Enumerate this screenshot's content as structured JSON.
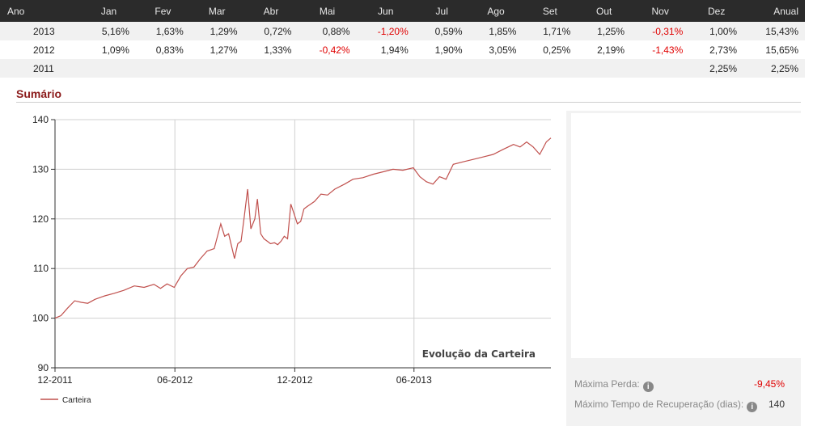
{
  "table": {
    "headers": [
      "Ano",
      "Jan",
      "Fev",
      "Mar",
      "Abr",
      "Mai",
      "Jun",
      "Jul",
      "Ago",
      "Set",
      "Out",
      "Nov",
      "Dez",
      "Anual"
    ],
    "rows": [
      {
        "year": "2013",
        "cells": [
          "5,16%",
          "1,63%",
          "1,29%",
          "0,72%",
          "0,88%",
          "-1,20%",
          "0,59%",
          "1,85%",
          "1,71%",
          "1,25%",
          "-0,31%",
          "1,00%",
          "15,43%"
        ]
      },
      {
        "year": "2012",
        "cells": [
          "1,09%",
          "0,83%",
          "1,27%",
          "1,33%",
          "-0,42%",
          "1,94%",
          "1,90%",
          "3,05%",
          "0,25%",
          "2,19%",
          "-1,43%",
          "2,73%",
          "15,65%"
        ]
      },
      {
        "year": "2011",
        "cells": [
          "",
          "",
          "",
          "",
          "",
          "",
          "",
          "",
          "",
          "",
          "",
          "2,25%",
          "2,25%"
        ]
      }
    ]
  },
  "summary": {
    "title": "Sumário",
    "metrics": [
      {
        "label": "Máxima Perda:",
        "value": "-9,45%",
        "negative": true
      },
      {
        "label": "Máximo Tempo de Recuperação (dias):",
        "value": "140",
        "negative": false
      }
    ]
  },
  "colors": {
    "line": "#c0504d",
    "header_bg": "#2b2b2b",
    "negative": "#e00000",
    "title": "#8b1a1a"
  },
  "chart_data": {
    "type": "line",
    "title": "Evolução da Carteira",
    "xlabel": "",
    "ylabel": "",
    "ylim": [
      90,
      140
    ],
    "yticks": [
      90,
      100,
      110,
      120,
      130,
      140
    ],
    "xticks": [
      "12-2011",
      "06-2012",
      "12-2012",
      "06-2013"
    ],
    "grid": true,
    "legend": "bottom-left",
    "series": [
      {
        "name": "Carteira",
        "x": [
          "2011-12-01",
          "2011-12-10",
          "2011-12-20",
          "2011-12-31",
          "2012-01-10",
          "2012-01-20",
          "2012-01-31",
          "2012-02-15",
          "2012-02-29",
          "2012-03-15",
          "2012-03-31",
          "2012-04-15",
          "2012-04-30",
          "2012-05-10",
          "2012-05-20",
          "2012-05-31",
          "2012-06-10",
          "2012-06-20",
          "2012-06-30",
          "2012-07-10",
          "2012-07-20",
          "2012-07-31",
          "2012-08-10",
          "2012-08-16",
          "2012-08-22",
          "2012-08-31",
          "2012-09-05",
          "2012-09-10",
          "2012-09-15",
          "2012-09-20",
          "2012-09-25",
          "2012-10-01",
          "2012-10-05",
          "2012-10-10",
          "2012-10-15",
          "2012-10-20",
          "2012-10-25",
          "2012-10-31",
          "2012-11-05",
          "2012-11-10",
          "2012-11-15",
          "2012-11-20",
          "2012-11-25",
          "2012-11-30",
          "2012-12-05",
          "2012-12-10",
          "2012-12-15",
          "2012-12-20",
          "2012-12-31",
          "2013-01-10",
          "2013-01-20",
          "2013-01-31",
          "2013-02-15",
          "2013-02-28",
          "2013-03-15",
          "2013-03-31",
          "2013-04-15",
          "2013-04-30",
          "2013-05-15",
          "2013-05-31",
          "2013-06-10",
          "2013-06-20",
          "2013-06-30",
          "2013-07-10",
          "2013-07-20",
          "2013-07-31",
          "2013-08-15",
          "2013-08-31",
          "2013-09-15",
          "2013-09-30",
          "2013-10-15",
          "2013-10-31",
          "2013-11-10",
          "2013-11-20",
          "2013-11-30",
          "2013-12-10",
          "2013-12-20",
          "2013-12-27"
        ],
        "values": [
          100.0,
          100.5,
          102.0,
          103.5,
          103.2,
          103.0,
          103.8,
          104.5,
          105.0,
          105.6,
          106.5,
          106.2,
          106.8,
          106.0,
          106.9,
          106.2,
          108.5,
          110.0,
          110.3,
          112.0,
          113.5,
          114.0,
          119.0,
          116.5,
          117.0,
          112.0,
          115.0,
          115.5,
          120.5,
          126.0,
          118.0,
          120.0,
          124.0,
          117.0,
          116.0,
          115.5,
          115.0,
          115.2,
          114.8,
          115.5,
          116.5,
          116.0,
          123.0,
          121.0,
          119.0,
          119.5,
          122.0,
          122.5,
          123.5,
          125.0,
          124.8,
          126.0,
          127.0,
          128.0,
          128.3,
          129.0,
          129.5,
          130.0,
          129.8,
          130.3,
          128.5,
          127.5,
          127.0,
          128.5,
          128.0,
          131.0,
          131.5,
          132.0,
          132.5,
          133.0,
          134.0,
          135.0,
          134.5,
          135.5,
          134.5,
          133.0,
          135.5,
          136.3
        ]
      }
    ]
  }
}
